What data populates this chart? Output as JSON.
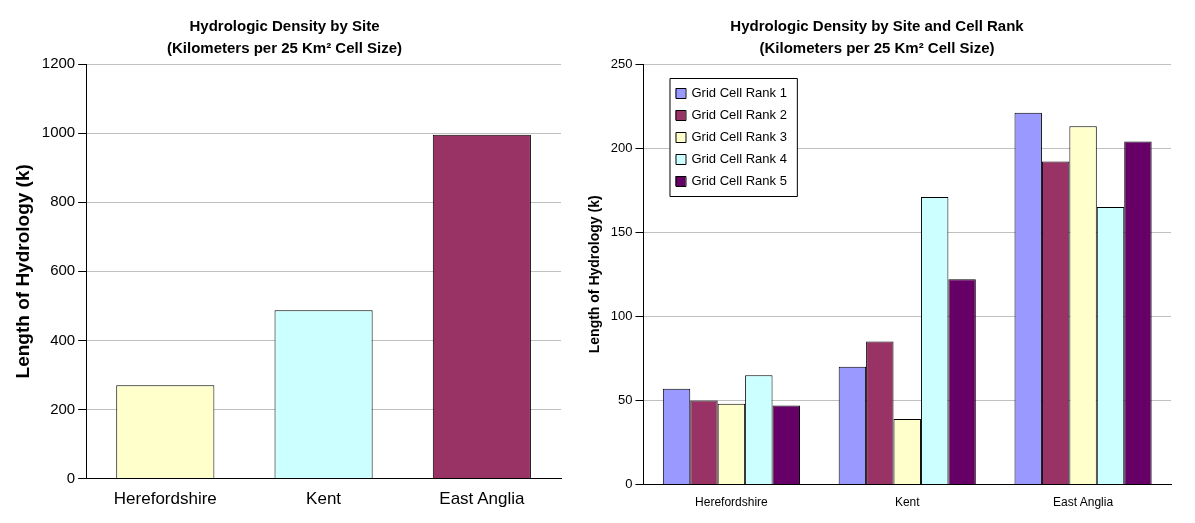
{
  "chart_data": [
    {
      "type": "bar",
      "title": "Hydrologic Density by Site",
      "subtitle": "(Kilometers per 25 Km² Cell Size)",
      "ylabel": "Length of Hydrology (k)",
      "categories": [
        "Herefordshire",
        "Kent",
        "East Anglia"
      ],
      "values": [
        270,
        487,
        995
      ],
      "colors": [
        "#ffffcc",
        "#ccffff",
        "#993366"
      ],
      "ylim": [
        0,
        1200
      ],
      "yticks": [
        0,
        200,
        400,
        600,
        800,
        1000,
        1200
      ],
      "grid": "y",
      "legend": false
    },
    {
      "type": "bar",
      "title": "Hydrologic Density by Site and Cell Rank",
      "subtitle": "(Kilometers per 25 Km² Cell Size)",
      "ylabel": "Length of Hydrology (k)",
      "categories": [
        "Herefordshire",
        "Kent",
        "East Anglia"
      ],
      "series": [
        {
          "name": "Grid Cell Rank 1",
          "color": "#9999ff",
          "values": [
            57,
            70,
            221
          ]
        },
        {
          "name": "Grid Cell Rank 2",
          "color": "#993366",
          "values": [
            50,
            85,
            192
          ]
        },
        {
          "name": "Grid Cell Rank 3",
          "color": "#ffffcc",
          "values": [
            48,
            39,
            213
          ]
        },
        {
          "name": "Grid Cell Rank 4",
          "color": "#ccffff",
          "values": [
            65,
            171,
            165
          ]
        },
        {
          "name": "Grid Cell Rank 5",
          "color": "#660066",
          "values": [
            47,
            122,
            204
          ]
        }
      ],
      "ylim": [
        0,
        250
      ],
      "yticks": [
        0,
        50,
        100,
        150,
        200,
        250
      ],
      "grid": "y",
      "legend": "top left"
    }
  ]
}
